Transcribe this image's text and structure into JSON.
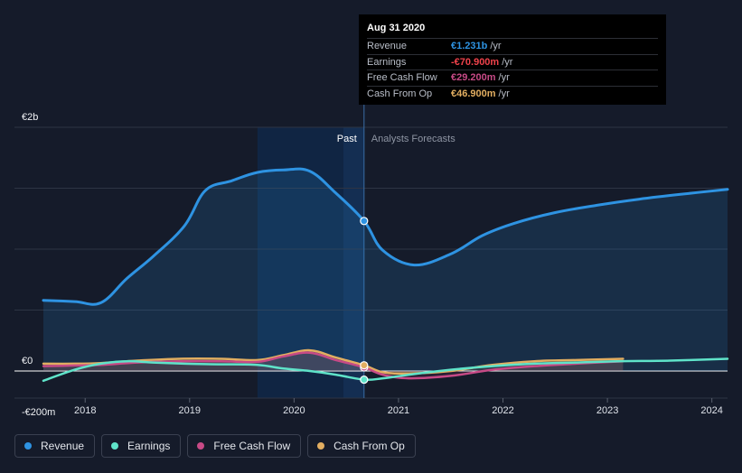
{
  "chart_data": {
    "type": "line",
    "x_axis": {
      "min": 2017.6,
      "max": 2024.15,
      "ticks": [
        2018,
        2019,
        2020,
        2021,
        2022,
        2023,
        2024
      ],
      "tick_labels": [
        "2018",
        "2019",
        "2020",
        "2021",
        "2022",
        "2023",
        "2024"
      ]
    },
    "y_axis": {
      "min": -200,
      "max": 2000,
      "labels": [
        {
          "value": 2000,
          "text": "€2b"
        },
        {
          "value": 0,
          "text": "€0"
        },
        {
          "value": -200,
          "text": "-€200m"
        }
      ],
      "gridlines": [
        2000,
        1500,
        1000,
        500,
        0
      ]
    },
    "divider_x": 2020.67,
    "past_shade_start": 2019.65,
    "past_label": "Past",
    "forecast_label": "Analysts Forecasts",
    "series": [
      {
        "name": "Revenue",
        "color": "#2e93e2",
        "fill": true,
        "points": [
          [
            2017.6,
            580
          ],
          [
            2017.9,
            570
          ],
          [
            2018.15,
            560
          ],
          [
            2018.4,
            760
          ],
          [
            2018.65,
            940
          ],
          [
            2018.95,
            1190
          ],
          [
            2019.15,
            1480
          ],
          [
            2019.4,
            1560
          ],
          [
            2019.65,
            1630
          ],
          [
            2019.9,
            1650
          ],
          [
            2020.15,
            1640
          ],
          [
            2020.4,
            1460
          ],
          [
            2020.67,
            1231
          ],
          [
            2020.85,
            990
          ],
          [
            2021.15,
            870
          ],
          [
            2021.5,
            960
          ],
          [
            2021.8,
            1110
          ],
          [
            2022.1,
            1210
          ],
          [
            2022.5,
            1300
          ],
          [
            2022.9,
            1360
          ],
          [
            2023.3,
            1410
          ],
          [
            2023.7,
            1450
          ],
          [
            2024.15,
            1490
          ]
        ]
      },
      {
        "name": "Earnings",
        "color": "#5fe3c9",
        "points": [
          [
            2017.6,
            -80
          ],
          [
            2017.9,
            10
          ],
          [
            2018.15,
            60
          ],
          [
            2018.4,
            80
          ],
          [
            2018.65,
            70
          ],
          [
            2018.95,
            60
          ],
          [
            2019.3,
            55
          ],
          [
            2019.65,
            50
          ],
          [
            2019.9,
            20
          ],
          [
            2020.15,
            0
          ],
          [
            2020.4,
            -30
          ],
          [
            2020.67,
            -70.9
          ],
          [
            2020.85,
            -60
          ],
          [
            2021.1,
            -30
          ],
          [
            2021.5,
            10
          ],
          [
            2021.9,
            40
          ],
          [
            2022.3,
            60
          ],
          [
            2022.7,
            70
          ],
          [
            2023.1,
            80
          ],
          [
            2023.6,
            85
          ],
          [
            2024.15,
            100
          ]
        ]
      },
      {
        "name": "Free Cash Flow",
        "color": "#c74a86",
        "points": [
          [
            2017.6,
            40
          ],
          [
            2017.9,
            45
          ],
          [
            2018.15,
            50
          ],
          [
            2018.5,
            70
          ],
          [
            2018.9,
            80
          ],
          [
            2019.3,
            80
          ],
          [
            2019.65,
            75
          ],
          [
            2019.9,
            120
          ],
          [
            2020.15,
            150
          ],
          [
            2020.4,
            90
          ],
          [
            2020.67,
            29.2
          ],
          [
            2020.85,
            -30
          ],
          [
            2021.1,
            -60
          ],
          [
            2021.5,
            -40
          ],
          [
            2021.9,
            10
          ],
          [
            2022.3,
            40
          ],
          [
            2022.7,
            60
          ],
          [
            2023.15,
            80
          ]
        ]
      },
      {
        "name": "Cash From Op",
        "color": "#e2ae61",
        "points": [
          [
            2017.6,
            60
          ],
          [
            2017.9,
            60
          ],
          [
            2018.15,
            65
          ],
          [
            2018.5,
            85
          ],
          [
            2018.9,
            100
          ],
          [
            2019.3,
            100
          ],
          [
            2019.65,
            90
          ],
          [
            2019.9,
            130
          ],
          [
            2020.15,
            170
          ],
          [
            2020.4,
            110
          ],
          [
            2020.67,
            46.9
          ],
          [
            2020.85,
            -10
          ],
          [
            2021.1,
            -20
          ],
          [
            2021.5,
            0
          ],
          [
            2021.9,
            50
          ],
          [
            2022.3,
            80
          ],
          [
            2022.7,
            90
          ],
          [
            2023.15,
            100
          ]
        ]
      }
    ]
  },
  "tooltip": {
    "date": "Aug 31 2020",
    "rows": [
      {
        "name": "Revenue",
        "value": "€1.231b",
        "unit": "/yr",
        "color": "#2e93e2"
      },
      {
        "name": "Earnings",
        "value": "-€70.900m",
        "unit": "/yr",
        "color": "#f0424b"
      },
      {
        "name": "Free Cash Flow",
        "value": "€29.200m",
        "unit": "/yr",
        "color": "#c74a86"
      },
      {
        "name": "Cash From Op",
        "value": "€46.900m",
        "unit": "/yr",
        "color": "#e2ae61"
      }
    ]
  },
  "legend": [
    {
      "label": "Revenue",
      "color": "#2e93e2"
    },
    {
      "label": "Earnings",
      "color": "#5fe3c9"
    },
    {
      "label": "Free Cash Flow",
      "color": "#c74a86"
    },
    {
      "label": "Cash From Op",
      "color": "#e2ae61"
    }
  ]
}
